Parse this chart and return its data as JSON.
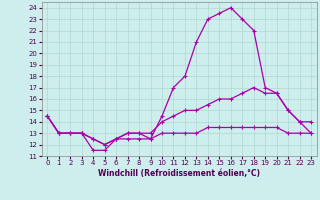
{
  "xlabel": "Windchill (Refroidissement éolien,°C)",
  "background_color": "#cdeeed",
  "grid_color": "#b0d8d0",
  "line_color": "#aa00aa",
  "xlim": [
    -0.5,
    23.5
  ],
  "ylim": [
    11,
    24.5
  ],
  "xticks": [
    0,
    1,
    2,
    3,
    4,
    5,
    6,
    7,
    8,
    9,
    10,
    11,
    12,
    13,
    14,
    15,
    16,
    17,
    18,
    19,
    20,
    21,
    22,
    23
  ],
  "yticks": [
    11,
    12,
    13,
    14,
    15,
    16,
    17,
    18,
    19,
    20,
    21,
    22,
    23,
    24
  ],
  "series": {
    "line1": {
      "x": [
        0,
        1,
        2,
        3,
        4,
        5,
        6,
        7,
        8,
        9,
        10,
        11,
        12,
        13,
        14,
        15,
        16,
        17,
        18,
        19,
        20,
        21,
        22,
        23
      ],
      "y": [
        14.5,
        13,
        13,
        13,
        11.5,
        11.5,
        12.5,
        13,
        13,
        12.5,
        14.5,
        17,
        18,
        21,
        23,
        23.5,
        24,
        23,
        22,
        17,
        16.5,
        15,
        14,
        14
      ]
    },
    "line2": {
      "x": [
        0,
        1,
        2,
        3,
        4,
        5,
        6,
        7,
        8,
        9,
        10,
        11,
        12,
        13,
        14,
        15,
        16,
        17,
        18,
        19,
        20,
        21,
        22,
        23
      ],
      "y": [
        14.5,
        13,
        13,
        13,
        12.5,
        12,
        12.5,
        13,
        13,
        13,
        14,
        14.5,
        15,
        15,
        15.5,
        16,
        16,
        16.5,
        17,
        16.5,
        16.5,
        15,
        14,
        13
      ]
    },
    "line3": {
      "x": [
        0,
        1,
        2,
        3,
        4,
        5,
        6,
        7,
        8,
        9,
        10,
        11,
        12,
        13,
        14,
        15,
        16,
        17,
        18,
        19,
        20,
        21,
        22,
        23
      ],
      "y": [
        14.5,
        13,
        13,
        13,
        12.5,
        12,
        12.5,
        12.5,
        12.5,
        12.5,
        13,
        13,
        13,
        13,
        13.5,
        13.5,
        13.5,
        13.5,
        13.5,
        13.5,
        13.5,
        13,
        13,
        13
      ]
    }
  }
}
